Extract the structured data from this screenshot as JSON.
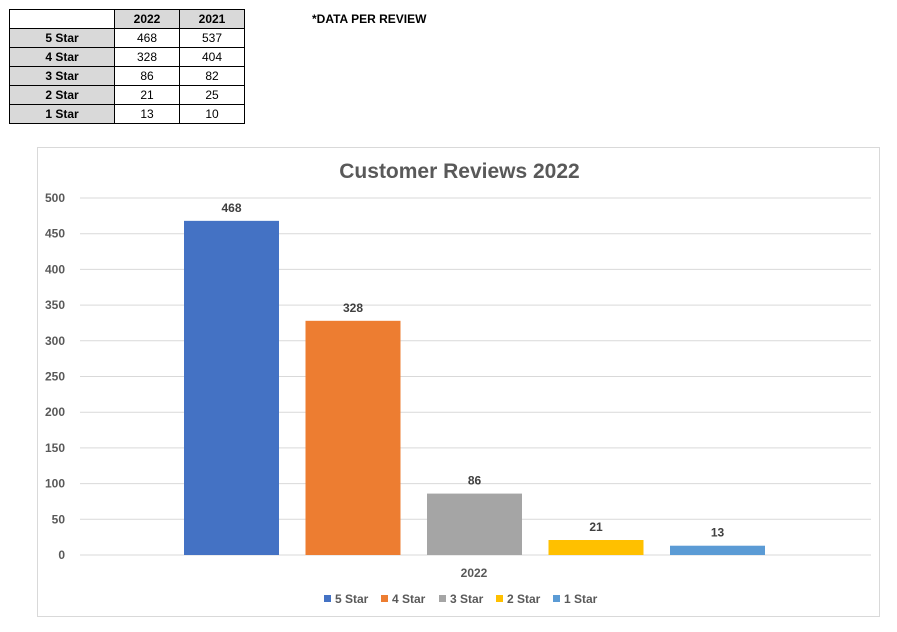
{
  "table": {
    "columns": [
      "2022",
      "2021"
    ],
    "rows": [
      {
        "label": "5 Star",
        "values": [
          "468",
          "537"
        ]
      },
      {
        "label": "4 Star",
        "values": [
          "328",
          "404"
        ]
      },
      {
        "label": "3 Star",
        "values": [
          "86",
          "82"
        ]
      },
      {
        "label": "2 Star",
        "values": [
          "21",
          "25"
        ]
      },
      {
        "label": "1 Star",
        "values": [
          "13",
          "10"
        ]
      }
    ]
  },
  "note": "*DATA PER REVIEW",
  "chart_data": {
    "type": "bar",
    "title": "Customer Reviews 2022",
    "categories": [
      "2022"
    ],
    "series": [
      {
        "name": "5 Star",
        "values": [
          468
        ],
        "color": "#4472c4"
      },
      {
        "name": "4 Star",
        "values": [
          328
        ],
        "color": "#ed7d31"
      },
      {
        "name": "3 Star",
        "values": [
          86
        ],
        "color": "#a5a5a5"
      },
      {
        "name": "2 Star",
        "values": [
          21
        ],
        "color": "#ffc000"
      },
      {
        "name": "1 Star",
        "values": [
          13
        ],
        "color": "#5b9bd5"
      }
    ],
    "ylim": [
      0,
      500
    ],
    "yticks": [
      0,
      50,
      100,
      150,
      200,
      250,
      300,
      350,
      400,
      450,
      500
    ],
    "grid": true,
    "data_labels": true,
    "legend_position": "bottom",
    "xlabel": "",
    "ylabel": ""
  }
}
